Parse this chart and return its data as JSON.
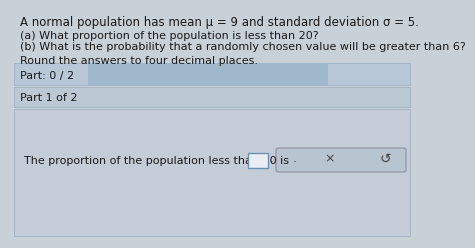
{
  "bg_color": "#c8d0d8",
  "top_bg": "#c8d0d8",
  "title_text": "A normal population has mean μ = 9 and standard deviation σ = 5.",
  "line_a": "(a) What proportion of the population is less than 20?",
  "line_b": "(b) What is the probability that a randomly chosen value will be greater than 6?",
  "line_round": "Round the answers to four decimal places.",
  "part_bar_text": "Part: 0 / 2",
  "part_bar_bg": "#b8c8d8",
  "part_bar_progress": "#a0b8cc",
  "part1_text": "Part 1 of 2",
  "part1_bg": "#bcc8d4",
  "bottom_bg": "#c4ccd8",
  "bottom_text": "The proportion of the population less than 20 is",
  "box_color": "#e8eef4",
  "box_border": "#7090b0",
  "button_bg": "#b8c4d0",
  "button_border": "#9090a0",
  "font_color": "#1a1a1a",
  "font_size_title": 8.5,
  "font_size_body": 8.0,
  "font_size_part": 8.0,
  "dot_color": "#444444",
  "x_color": "#444444"
}
